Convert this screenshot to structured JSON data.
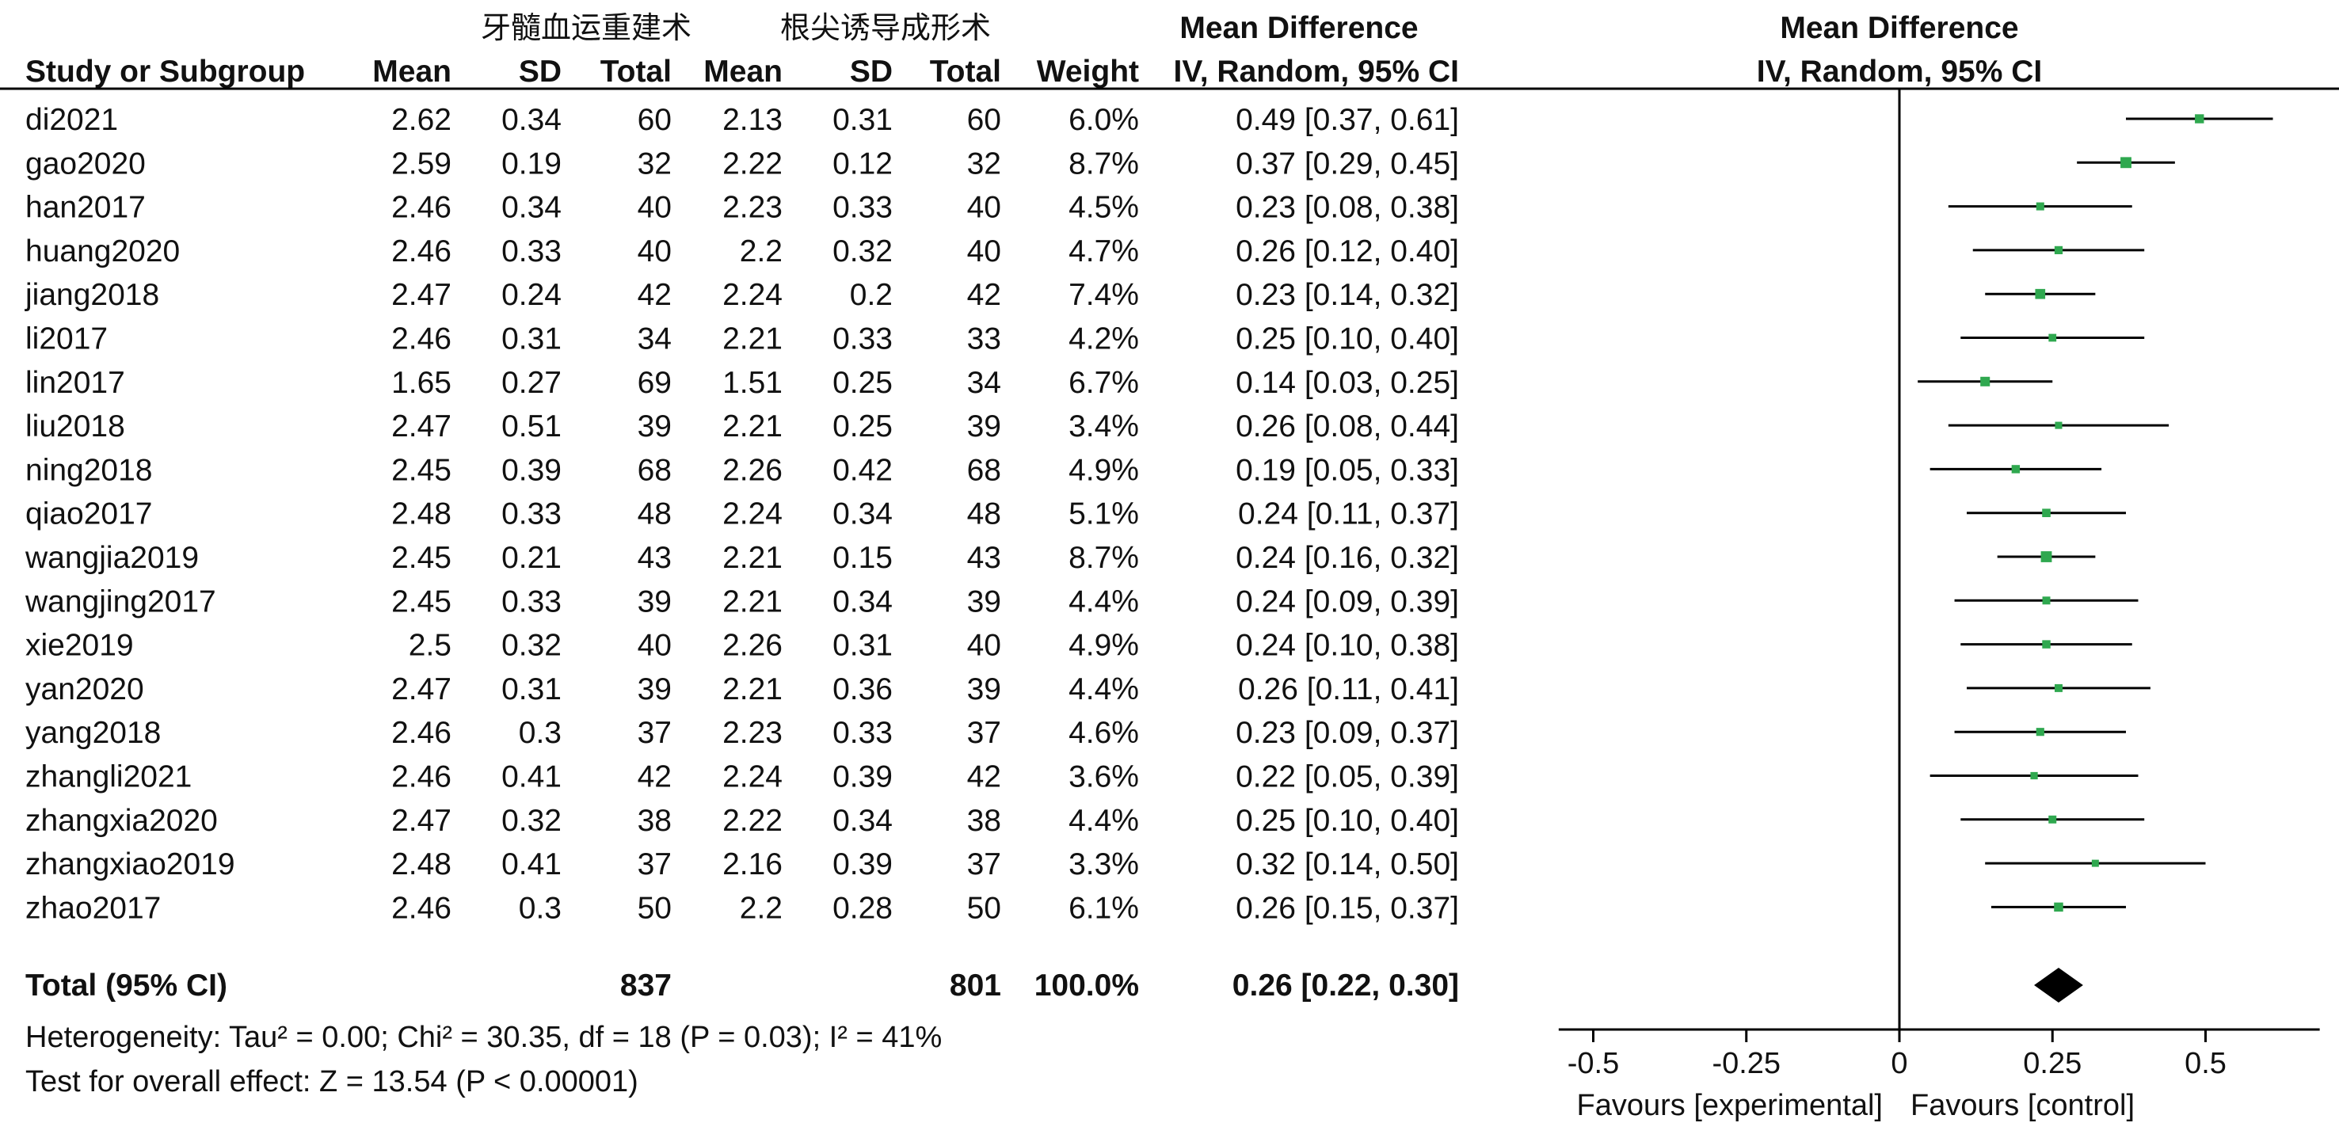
{
  "chart_data": {
    "type": "forest",
    "group_labels": {
      "experimental": "牙髓血运重建术",
      "control": "根尖诱导成形术"
    },
    "headers": {
      "study": "Study or Subgroup",
      "mean": "Mean",
      "sd": "SD",
      "total": "Total",
      "weight": "Weight",
      "effect_title": "Mean Difference",
      "effect_method": "IV, Random, 95% CI",
      "plot_title": "Mean Difference",
      "plot_method": "IV, Random, 95% CI"
    },
    "studies": [
      {
        "name": "di2021",
        "m1": "2.62",
        "sd1": "0.34",
        "n1": "60",
        "m2": "2.13",
        "sd2": "0.31",
        "n2": "60",
        "weight": "6.0%",
        "ci_text": "0.49 [0.37, 0.61]",
        "md": 0.49,
        "lo": 0.37,
        "hi": 0.61
      },
      {
        "name": "gao2020",
        "m1": "2.59",
        "sd1": "0.19",
        "n1": "32",
        "m2": "2.22",
        "sd2": "0.12",
        "n2": "32",
        "weight": "8.7%",
        "ci_text": "0.37 [0.29, 0.45]",
        "md": 0.37,
        "lo": 0.29,
        "hi": 0.45
      },
      {
        "name": "han2017",
        "m1": "2.46",
        "sd1": "0.34",
        "n1": "40",
        "m2": "2.23",
        "sd2": "0.33",
        "n2": "40",
        "weight": "4.5%",
        "ci_text": "0.23 [0.08, 0.38]",
        "md": 0.23,
        "lo": 0.08,
        "hi": 0.38
      },
      {
        "name": "huang2020",
        "m1": "2.46",
        "sd1": "0.33",
        "n1": "40",
        "m2": "2.2",
        "sd2": "0.32",
        "n2": "40",
        "weight": "4.7%",
        "ci_text": "0.26 [0.12, 0.40]",
        "md": 0.26,
        "lo": 0.12,
        "hi": 0.4
      },
      {
        "name": "jiang2018",
        "m1": "2.47",
        "sd1": "0.24",
        "n1": "42",
        "m2": "2.24",
        "sd2": "0.2",
        "n2": "42",
        "weight": "7.4%",
        "ci_text": "0.23 [0.14, 0.32]",
        "md": 0.23,
        "lo": 0.14,
        "hi": 0.32
      },
      {
        "name": "li2017",
        "m1": "2.46",
        "sd1": "0.31",
        "n1": "34",
        "m2": "2.21",
        "sd2": "0.33",
        "n2": "33",
        "weight": "4.2%",
        "ci_text": "0.25 [0.10, 0.40]",
        "md": 0.25,
        "lo": 0.1,
        "hi": 0.4
      },
      {
        "name": "lin2017",
        "m1": "1.65",
        "sd1": "0.27",
        "n1": "69",
        "m2": "1.51",
        "sd2": "0.25",
        "n2": "34",
        "weight": "6.7%",
        "ci_text": "0.14 [0.03, 0.25]",
        "md": 0.14,
        "lo": 0.03,
        "hi": 0.25
      },
      {
        "name": "liu2018",
        "m1": "2.47",
        "sd1": "0.51",
        "n1": "39",
        "m2": "2.21",
        "sd2": "0.25",
        "n2": "39",
        "weight": "3.4%",
        "ci_text": "0.26 [0.08, 0.44]",
        "md": 0.26,
        "lo": 0.08,
        "hi": 0.44
      },
      {
        "name": "ning2018",
        "m1": "2.45",
        "sd1": "0.39",
        "n1": "68",
        "m2": "2.26",
        "sd2": "0.42",
        "n2": "68",
        "weight": "4.9%",
        "ci_text": "0.19 [0.05, 0.33]",
        "md": 0.19,
        "lo": 0.05,
        "hi": 0.33
      },
      {
        "name": "qiao2017",
        "m1": "2.48",
        "sd1": "0.33",
        "n1": "48",
        "m2": "2.24",
        "sd2": "0.34",
        "n2": "48",
        "weight": "5.1%",
        "ci_text": "0.24 [0.11, 0.37]",
        "md": 0.24,
        "lo": 0.11,
        "hi": 0.37
      },
      {
        "name": "wangjia2019",
        "m1": "2.45",
        "sd1": "0.21",
        "n1": "43",
        "m2": "2.21",
        "sd2": "0.15",
        "n2": "43",
        "weight": "8.7%",
        "ci_text": "0.24 [0.16, 0.32]",
        "md": 0.24,
        "lo": 0.16,
        "hi": 0.32
      },
      {
        "name": "wangjing2017",
        "m1": "2.45",
        "sd1": "0.33",
        "n1": "39",
        "m2": "2.21",
        "sd2": "0.34",
        "n2": "39",
        "weight": "4.4%",
        "ci_text": "0.24 [0.09, 0.39]",
        "md": 0.24,
        "lo": 0.09,
        "hi": 0.39
      },
      {
        "name": "xie2019",
        "m1": "2.5",
        "sd1": "0.32",
        "n1": "40",
        "m2": "2.26",
        "sd2": "0.31",
        "n2": "40",
        "weight": "4.9%",
        "ci_text": "0.24 [0.10, 0.38]",
        "md": 0.24,
        "lo": 0.1,
        "hi": 0.38
      },
      {
        "name": "yan2020",
        "m1": "2.47",
        "sd1": "0.31",
        "n1": "39",
        "m2": "2.21",
        "sd2": "0.36",
        "n2": "39",
        "weight": "4.4%",
        "ci_text": "0.26 [0.11, 0.41]",
        "md": 0.26,
        "lo": 0.11,
        "hi": 0.41
      },
      {
        "name": "yang2018",
        "m1": "2.46",
        "sd1": "0.3",
        "n1": "37",
        "m2": "2.23",
        "sd2": "0.33",
        "n2": "37",
        "weight": "4.6%",
        "ci_text": "0.23 [0.09, 0.37]",
        "md": 0.23,
        "lo": 0.09,
        "hi": 0.37
      },
      {
        "name": "zhangli2021",
        "m1": "2.46",
        "sd1": "0.41",
        "n1": "42",
        "m2": "2.24",
        "sd2": "0.39",
        "n2": "42",
        "weight": "3.6%",
        "ci_text": "0.22 [0.05, 0.39]",
        "md": 0.22,
        "lo": 0.05,
        "hi": 0.39
      },
      {
        "name": "zhangxia2020",
        "m1": "2.47",
        "sd1": "0.32",
        "n1": "38",
        "m2": "2.22",
        "sd2": "0.34",
        "n2": "38",
        "weight": "4.4%",
        "ci_text": "0.25 [0.10, 0.40]",
        "md": 0.25,
        "lo": 0.1,
        "hi": 0.4
      },
      {
        "name": "zhangxiao2019",
        "m1": "2.48",
        "sd1": "0.41",
        "n1": "37",
        "m2": "2.16",
        "sd2": "0.39",
        "n2": "37",
        "weight": "3.3%",
        "ci_text": "0.32 [0.14, 0.50]",
        "md": 0.32,
        "lo": 0.14,
        "hi": 0.5
      },
      {
        "name": "zhao2017",
        "m1": "2.46",
        "sd1": "0.3",
        "n1": "50",
        "m2": "2.2",
        "sd2": "0.28",
        "n2": "50",
        "weight": "6.1%",
        "ci_text": "0.26 [0.15, 0.37]",
        "md": 0.26,
        "lo": 0.15,
        "hi": 0.37
      }
    ],
    "total": {
      "label": "Total (95% CI)",
      "n1": "837",
      "n2": "801",
      "weight": "100.0%",
      "ci_text": "0.26 [0.22, 0.30]",
      "md": 0.26,
      "lo": 0.22,
      "hi": 0.3
    },
    "heterogeneity": "Heterogeneity: Tau² = 0.00; Chi² = 30.35, df = 18 (P = 0.03); I² = 41%",
    "overall_effect": "Test for overall effect: Z = 13.54 (P < 0.00001)",
    "axis": {
      "xlim": [
        -0.55,
        0.68
      ],
      "ticks": [
        -0.5,
        -0.25,
        0,
        0.25,
        0.5
      ],
      "tick_labels": [
        "-0.5",
        "-0.25",
        "0",
        "0.25",
        "0.5"
      ],
      "favours_left": "Favours [experimental]",
      "favours_right": "Favours [control]"
    },
    "colors": {
      "point": "#2fa84f",
      "line": "#000000",
      "diamond": "#000000"
    }
  }
}
